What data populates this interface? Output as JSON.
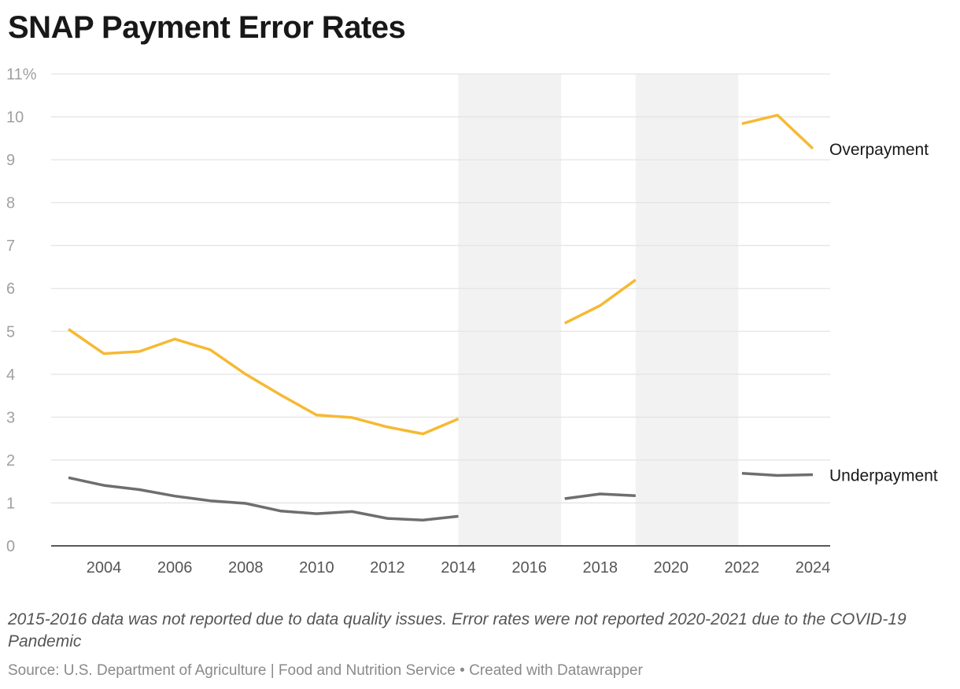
{
  "title": "SNAP Payment Error Rates",
  "note": "2015-2016 data was not reported due to data quality issues. Error rates were not reported 2020-2021 due to the COVID-19 Pandemic",
  "source": "Source: U.S. Department of Agriculture | Food and Nutrition Service • Created with Datawrapper",
  "colors": {
    "overpayment": "#f6b933",
    "underpayment": "#6e6e6e",
    "shade": "#f2f2f2",
    "grid": "#e4e4e4",
    "axis": "#222222",
    "tick_text": "#a0a0a0",
    "x_tick_text": "#555555",
    "label_text": "#181818"
  },
  "chart_data": {
    "type": "line",
    "xlabel": "",
    "ylabel": "",
    "xlim": [
      2003,
      2024
    ],
    "ylim": [
      0,
      11
    ],
    "y_ticks": [
      0,
      1,
      2,
      3,
      4,
      5,
      6,
      7,
      8,
      9,
      10,
      11
    ],
    "y_tick_labels": [
      "0",
      "1",
      "2",
      "3",
      "4",
      "5",
      "6",
      "7",
      "8",
      "9",
      "10",
      "11%"
    ],
    "x_ticks": [
      2004,
      2006,
      2008,
      2010,
      2012,
      2014,
      2016,
      2018,
      2020,
      2022,
      2024
    ],
    "x_tick_labels": [
      "2004",
      "2006",
      "2008",
      "2010",
      "2012",
      "2014",
      "2016",
      "2018",
      "2020",
      "2022",
      "2024"
    ],
    "grid": true,
    "legend": "direct labels at line ends",
    "shaded_ranges": [
      [
        2014,
        2016.9
      ],
      [
        2019,
        2021.9
      ]
    ],
    "series": [
      {
        "name": "Overpayment",
        "color": "#f6b933",
        "segments": [
          {
            "x": [
              2003,
              2004,
              2005,
              2006,
              2007,
              2008,
              2009,
              2010,
              2011,
              2012,
              2013,
              2014
            ],
            "y": [
              5.05,
              4.48,
              4.53,
              4.82,
              4.57,
              4.0,
              3.51,
              3.05,
              2.99,
              2.77,
              2.61,
              2.96
            ]
          },
          {
            "x": [
              2017,
              2018,
              2019
            ],
            "y": [
              5.19,
              5.6,
              6.2
            ]
          },
          {
            "x": [
              2022,
              2023,
              2024
            ],
            "y": [
              9.84,
              10.04,
              9.26
            ]
          }
        ]
      },
      {
        "name": "Underpayment",
        "color": "#6e6e6e",
        "segments": [
          {
            "x": [
              2003,
              2004,
              2005,
              2006,
              2007,
              2008,
              2009,
              2010,
              2011,
              2012,
              2013,
              2014
            ],
            "y": [
              1.59,
              1.41,
              1.31,
              1.16,
              1.05,
              0.99,
              0.81,
              0.75,
              0.8,
              0.64,
              0.6,
              0.69
            ]
          },
          {
            "x": [
              2017,
              2018,
              2019
            ],
            "y": [
              1.1,
              1.21,
              1.17
            ]
          },
          {
            "x": [
              2022,
              2023,
              2024
            ],
            "y": [
              1.69,
              1.64,
              1.66
            ]
          }
        ]
      }
    ]
  }
}
